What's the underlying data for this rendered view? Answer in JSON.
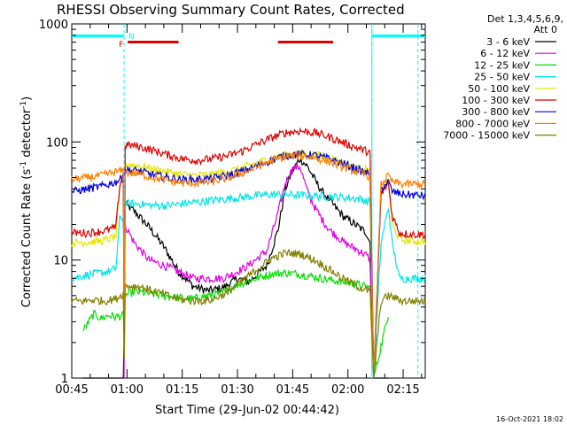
{
  "chart_data": {
    "type": "line",
    "title": "RHESSI Observing Summary Count Rates, Corrected",
    "xlabel": "Start Time (29-Jun-02 00:44:42)",
    "ylabel_main": "Corrected Count Rate (s",
    "ylabel_sup1": "-1",
    "ylabel_mid": " detector",
    "ylabel_sup2": "-1",
    "ylabel_end": ")",
    "yscale": "log",
    "ylim": [
      1,
      1000
    ],
    "xlim_minutes": [
      0,
      96
    ],
    "x_ticks": [
      {
        "m": 0,
        "label": "00:45"
      },
      {
        "m": 15,
        "label": "01:00"
      },
      {
        "m": 30,
        "label": "01:15"
      },
      {
        "m": 45,
        "label": "01:30"
      },
      {
        "m": 60,
        "label": "01:45"
      },
      {
        "m": 75,
        "label": "02:00"
      },
      {
        "m": 90,
        "label": "02:15"
      }
    ],
    "y_ticks": [
      {
        "v": 1,
        "label": "1"
      },
      {
        "v": 10,
        "label": "10"
      },
      {
        "v": 100,
        "label": "100"
      },
      {
        "v": 1000,
        "label": "1000"
      }
    ],
    "legend_header": "Det 1,3,4,5,6,9,",
    "legend_att": "Att 0",
    "footer_timestamp": "16-Oct-2021 18:02",
    "flags": {
      "night_label": "N",
      "flare_label": "F",
      "night_intervals": [
        [
          0,
          14.2
        ],
        [
          81.5,
          96
        ]
      ],
      "flare_intervals": [
        [
          15.2,
          29
        ],
        [
          56,
          71
        ]
      ],
      "night_color": "#00ffff",
      "flare_color": "#e00000",
      "attenuator_lines_minutes": [
        14.2,
        81.5,
        94
      ]
    },
    "gap_minutes": [
      14,
      81
    ],
    "series": [
      {
        "name": "3 - 6 keV",
        "color": "#000000",
        "points": [
          [
            3,
            1.0
          ],
          [
            14,
            1.0
          ],
          [
            14.2,
            1.0
          ],
          [
            14.4,
            30
          ],
          [
            17,
            26
          ],
          [
            21,
            19
          ],
          [
            25,
            13
          ],
          [
            29,
            8
          ],
          [
            33,
            6
          ],
          [
            37,
            5.5
          ],
          [
            41,
            5.8
          ],
          [
            45,
            7
          ],
          [
            48,
            6.5
          ],
          [
            53,
            9
          ],
          [
            56,
            18
          ],
          [
            58,
            40
          ],
          [
            60,
            58
          ],
          [
            62,
            72
          ],
          [
            64,
            62
          ],
          [
            66,
            48
          ],
          [
            68,
            38
          ],
          [
            70,
            32
          ],
          [
            72,
            27
          ],
          [
            74,
            23
          ],
          [
            76,
            21
          ],
          [
            78,
            19
          ],
          [
            80,
            17
          ],
          [
            81,
            14
          ],
          [
            82,
            1.0
          ],
          [
            86,
            1.0
          ]
        ]
      },
      {
        "name": "6 - 12 keV",
        "color": "#e000e0",
        "points": [
          [
            14.2,
            1.0
          ],
          [
            14.4,
            20
          ],
          [
            17,
            14
          ],
          [
            21,
            10
          ],
          [
            25,
            9
          ],
          [
            29,
            8
          ],
          [
            33,
            7
          ],
          [
            37,
            7
          ],
          [
            41,
            7
          ],
          [
            45,
            8
          ],
          [
            48,
            9
          ],
          [
            53,
            12
          ],
          [
            56,
            25
          ],
          [
            58,
            45
          ],
          [
            60,
            60
          ],
          [
            62,
            62
          ],
          [
            64,
            38
          ],
          [
            66,
            28
          ],
          [
            68,
            22
          ],
          [
            70,
            18
          ],
          [
            72,
            16
          ],
          [
            74,
            14
          ],
          [
            76,
            13
          ],
          [
            78,
            12
          ],
          [
            80,
            11
          ],
          [
            81,
            10
          ],
          [
            82,
            1.0
          ]
        ]
      },
      {
        "name": "12 - 25 keV",
        "color": "#00e000",
        "points": [
          [
            3,
            2.5
          ],
          [
            6,
            3.5
          ],
          [
            8,
            3.2
          ],
          [
            10,
            3.4
          ],
          [
            12,
            3.3
          ],
          [
            14,
            3.4
          ],
          [
            14.2,
            1.0
          ],
          [
            14.4,
            5
          ],
          [
            17,
            5.4
          ],
          [
            21,
            5.2
          ],
          [
            25,
            5
          ],
          [
            29,
            4.8
          ],
          [
            33,
            4.7
          ],
          [
            37,
            5
          ],
          [
            41,
            5.3
          ],
          [
            45,
            6.2
          ],
          [
            50,
            7
          ],
          [
            54,
            7.6
          ],
          [
            58,
            7.8
          ],
          [
            62,
            7.6
          ],
          [
            66,
            7.2
          ],
          [
            70,
            6.8
          ],
          [
            74,
            6.5
          ],
          [
            78,
            6.2
          ],
          [
            81,
            5.8
          ],
          [
            82,
            1.0
          ],
          [
            86,
            3.5
          ]
        ]
      },
      {
        "name": "25 - 50 keV",
        "color": "#00e6e6",
        "points": [
          [
            0,
            7
          ],
          [
            4,
            7.5
          ],
          [
            8,
            7.8
          ],
          [
            10,
            8
          ],
          [
            12,
            8.5
          ],
          [
            13,
            22
          ],
          [
            14,
            23
          ],
          [
            14.2,
            1.0
          ],
          [
            14.4,
            30
          ],
          [
            18,
            30
          ],
          [
            22,
            29
          ],
          [
            26,
            29
          ],
          [
            30,
            30
          ],
          [
            34,
            31
          ],
          [
            38,
            32
          ],
          [
            42,
            33
          ],
          [
            46,
            34
          ],
          [
            50,
            35
          ],
          [
            54,
            36
          ],
          [
            58,
            36
          ],
          [
            62,
            35.5
          ],
          [
            66,
            35
          ],
          [
            70,
            34.5
          ],
          [
            74,
            34
          ],
          [
            78,
            33
          ],
          [
            81,
            31
          ],
          [
            82,
            1.0
          ],
          [
            84,
            14
          ],
          [
            86,
            28
          ],
          [
            87,
            14
          ],
          [
            89,
            7
          ],
          [
            92,
            7
          ],
          [
            96,
            7
          ]
        ]
      },
      {
        "name": "50 - 100 keV",
        "color": "#e6e600",
        "points": [
          [
            0,
            14
          ],
          [
            4,
            14.2
          ],
          [
            8,
            14.5
          ],
          [
            10,
            15
          ],
          [
            12,
            16
          ],
          [
            13,
            40
          ],
          [
            14,
            50
          ],
          [
            14.2,
            1.0
          ],
          [
            14.4,
            65
          ],
          [
            18,
            63
          ],
          [
            22,
            59
          ],
          [
            26,
            56
          ],
          [
            30,
            53
          ],
          [
            34,
            52
          ],
          [
            38,
            53
          ],
          [
            42,
            56
          ],
          [
            46,
            60
          ],
          [
            50,
            66
          ],
          [
            54,
            73
          ],
          [
            58,
            78
          ],
          [
            62,
            80
          ],
          [
            66,
            78
          ],
          [
            70,
            73
          ],
          [
            74,
            67
          ],
          [
            78,
            60
          ],
          [
            81,
            57
          ],
          [
            82,
            1.0
          ],
          [
            84,
            40
          ],
          [
            86,
            45
          ],
          [
            87,
            20
          ],
          [
            89,
            15
          ],
          [
            92,
            14.5
          ],
          [
            96,
            14.5
          ]
        ]
      },
      {
        "name": "100 - 300 keV",
        "color": "#e00000",
        "points": [
          [
            0,
            17
          ],
          [
            4,
            17
          ],
          [
            8,
            17.5
          ],
          [
            10,
            18
          ],
          [
            12,
            19
          ],
          [
            13,
            42
          ],
          [
            14,
            55
          ],
          [
            14.2,
            1.0
          ],
          [
            14.4,
            95
          ],
          [
            18,
            92
          ],
          [
            22,
            85
          ],
          [
            26,
            78
          ],
          [
            30,
            72
          ],
          [
            34,
            70
          ],
          [
            38,
            72
          ],
          [
            42,
            76
          ],
          [
            46,
            83
          ],
          [
            50,
            95
          ],
          [
            54,
            108
          ],
          [
            58,
            120
          ],
          [
            62,
            124
          ],
          [
            66,
            120
          ],
          [
            70,
            110
          ],
          [
            74,
            98
          ],
          [
            78,
            88
          ],
          [
            81,
            82
          ],
          [
            82,
            1.0
          ],
          [
            84,
            36
          ],
          [
            86,
            45
          ],
          [
            87,
            24
          ],
          [
            89,
            17
          ],
          [
            92,
            16.5
          ],
          [
            96,
            16.5
          ]
        ]
      },
      {
        "name": "300 - 800 keV",
        "color": "#0000e0",
        "points": [
          [
            0,
            38
          ],
          [
            4,
            40
          ],
          [
            8,
            42
          ],
          [
            10,
            44
          ],
          [
            12,
            46
          ],
          [
            14,
            50
          ],
          [
            14.2,
            1.0
          ],
          [
            14.4,
            58
          ],
          [
            18,
            57
          ],
          [
            22,
            53
          ],
          [
            26,
            50
          ],
          [
            30,
            48
          ],
          [
            34,
            48
          ],
          [
            38,
            49
          ],
          [
            42,
            52
          ],
          [
            46,
            56
          ],
          [
            50,
            62
          ],
          [
            54,
            70
          ],
          [
            58,
            77
          ],
          [
            62,
            79
          ],
          [
            66,
            77
          ],
          [
            70,
            72
          ],
          [
            74,
            65
          ],
          [
            78,
            58
          ],
          [
            81,
            53
          ],
          [
            82,
            1.0
          ],
          [
            84,
            40
          ],
          [
            86,
            46
          ],
          [
            87,
            38
          ],
          [
            90,
            36
          ],
          [
            96,
            35
          ]
        ]
      },
      {
        "name": "800 - 7000 keV",
        "color": "#ff8000",
        "points": [
          [
            0,
            48
          ],
          [
            4,
            50
          ],
          [
            8,
            52
          ],
          [
            10,
            54
          ],
          [
            12,
            56
          ],
          [
            14,
            57
          ],
          [
            14.2,
            1.0
          ],
          [
            14.4,
            55
          ],
          [
            18,
            54
          ],
          [
            22,
            50
          ],
          [
            26,
            47
          ],
          [
            30,
            45
          ],
          [
            34,
            45
          ],
          [
            38,
            46
          ],
          [
            42,
            49
          ],
          [
            46,
            54
          ],
          [
            50,
            61
          ],
          [
            54,
            69
          ],
          [
            58,
            75
          ],
          [
            62,
            77
          ],
          [
            66,
            74
          ],
          [
            70,
            68
          ],
          [
            74,
            61
          ],
          [
            78,
            55
          ],
          [
            81,
            51
          ],
          [
            82,
            1.0
          ],
          [
            84,
            44
          ],
          [
            86,
            52
          ],
          [
            87,
            46
          ],
          [
            90,
            44
          ],
          [
            96,
            44
          ]
        ]
      },
      {
        "name": "7000 - 15000 keV",
        "color": "#808000",
        "points": [
          [
            0,
            4.5
          ],
          [
            3,
            4.5
          ],
          [
            6,
            4.6
          ],
          [
            9,
            4.5
          ],
          [
            12,
            4.7
          ],
          [
            14,
            5.2
          ],
          [
            14.2,
            1.0
          ],
          [
            14.4,
            6
          ],
          [
            18,
            6
          ],
          [
            22,
            5.5
          ],
          [
            26,
            5
          ],
          [
            30,
            4.6
          ],
          [
            34,
            4.5
          ],
          [
            38,
            4.6
          ],
          [
            42,
            5.3
          ],
          [
            46,
            6.5
          ],
          [
            50,
            8.2
          ],
          [
            54,
            10.2
          ],
          [
            58,
            11.5
          ],
          [
            62,
            11.3
          ],
          [
            66,
            10
          ],
          [
            70,
            8.3
          ],
          [
            74,
            6.9
          ],
          [
            78,
            5.9
          ],
          [
            81,
            5.4
          ],
          [
            82,
            1.0
          ],
          [
            84,
            4.5
          ],
          [
            86,
            5
          ],
          [
            90,
            4.5
          ],
          [
            96,
            4.5
          ]
        ]
      }
    ]
  }
}
